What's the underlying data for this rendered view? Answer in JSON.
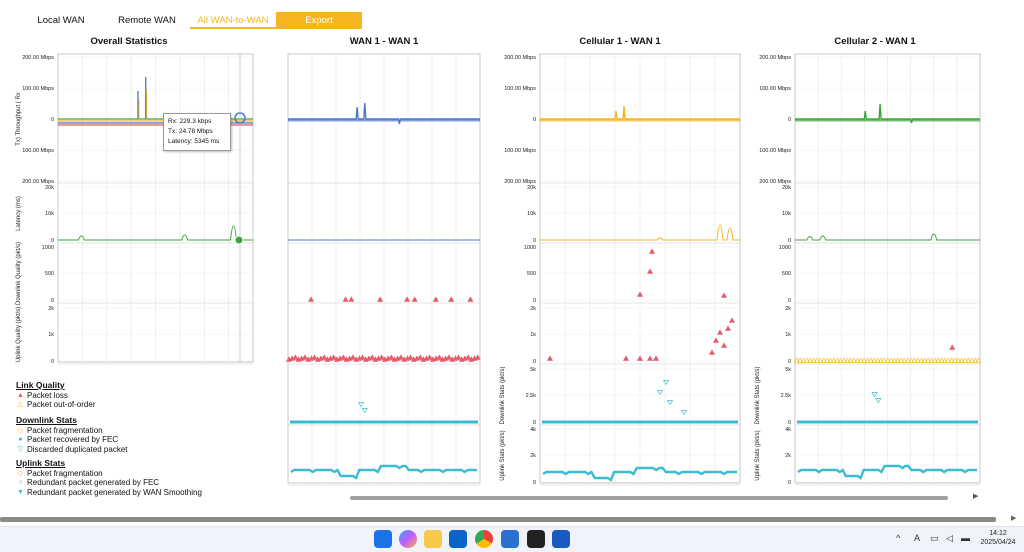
{
  "tabs": {
    "local": "Local WAN",
    "remote": "Remote WAN",
    "all": "All WAN-to-WAN",
    "export": "Export"
  },
  "panels": [
    {
      "title": "Overall Statistics"
    },
    {
      "title": "WAN 1 - WAN 1"
    },
    {
      "title": "Cellular 1 - WAN 1"
    },
    {
      "title": "Cellular 2 - WAN 1"
    }
  ],
  "axis_labels": {
    "throughput": "Tx) Throughput ( Rx",
    "latency": "Latency (ms)",
    "downlink_quality": "Downlink Quality (pkt/s)",
    "uplink_quality": "Uplink Quality (pkt/s)",
    "downlink_stats": "Downlink Stats (pkt/s)",
    "uplink_stats": "Uplink Stats (pkt/s)"
  },
  "ticks": {
    "throughput": [
      "200.00 Mbps",
      "100.00 Mbps",
      "0",
      "100.00 Mbps",
      "200.00 Mbps"
    ],
    "latency": [
      "20k",
      "10k",
      "0"
    ],
    "downlink_quality": [
      "1000",
      "500",
      "0"
    ],
    "uplink_quality": [
      "2k",
      "1k",
      "0"
    ],
    "downlink_stats": [
      "5k",
      "2.5k",
      "0"
    ],
    "uplink_stats": [
      "4k",
      "2k",
      "0"
    ]
  },
  "tooltip": {
    "rx": "Rx: 229.3 kbps",
    "tx": "Tx: 24.78 Mbps",
    "latency": "Latency: 5345 ms"
  },
  "legend": {
    "link_quality": {
      "title": "Link Quality",
      "items": [
        "Packet loss",
        "Packet out-of-order"
      ]
    },
    "downlink_stats": {
      "title": "Downlink Stats",
      "items": [
        "Packet fragmentation",
        "Packet recovered by FEC",
        "Discarded duplicated packet"
      ]
    },
    "uplink_stats": {
      "title": "Uplink Stats",
      "items": [
        "Packet fragmentation",
        "Redundant packet generated by FEC",
        "Redundant packet generated by WAN Smoothing"
      ]
    }
  },
  "clock": {
    "time": "14:12",
    "date": "2025/04/24"
  },
  "colors": {
    "accent": "#f5b521",
    "wan1": "#4a78c8",
    "cell1": "#f5b521",
    "cell2": "#3aa53a",
    "loss": "#e8596a",
    "cyan": "#3cbcd0"
  },
  "taskbar_icons": [
    "windows-start",
    "copilot",
    "file-explorer",
    "outlook",
    "chrome",
    "vscode",
    "notion",
    "word"
  ]
}
